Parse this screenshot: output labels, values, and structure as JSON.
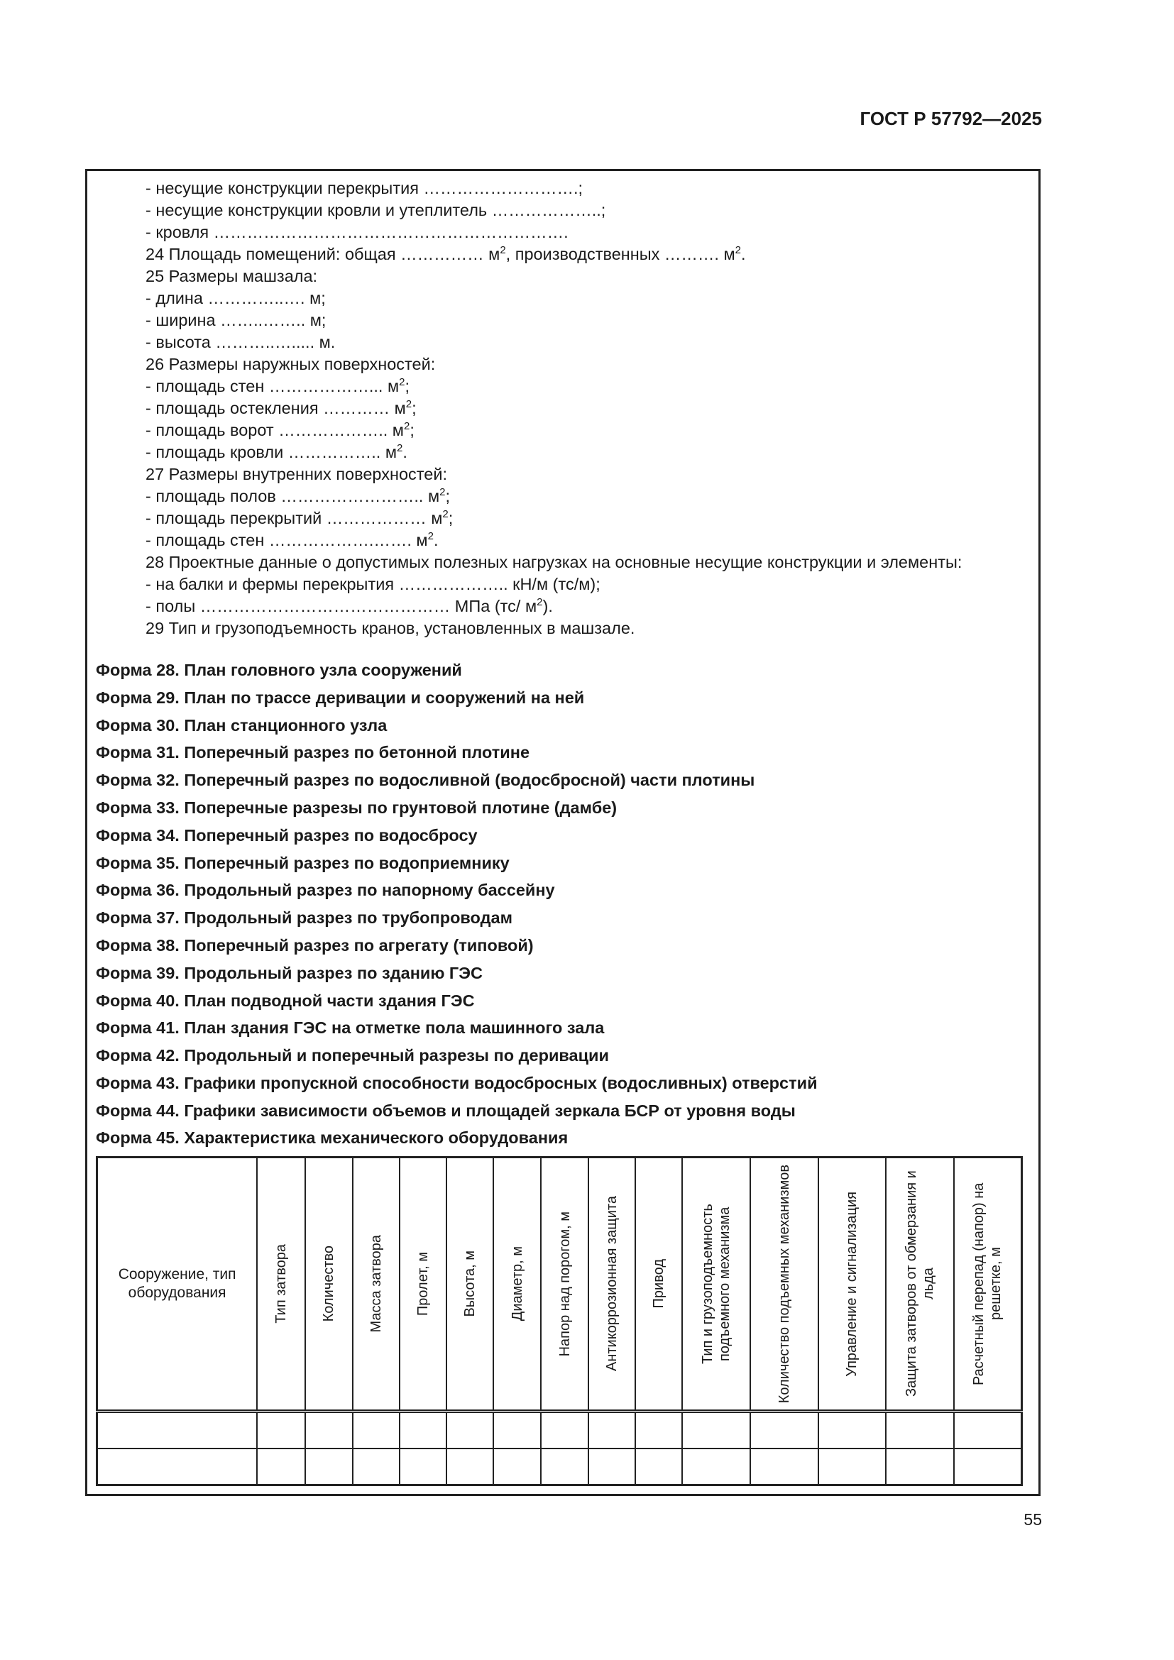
{
  "header": {
    "code": "ГОСТ Р 57792—2025"
  },
  "lines": [
    {
      "t": "- несущие конструкции перекрытия ……………………….;"
    },
    {
      "t": "- несущие конструкции кровли и утеплитель ………………..;"
    },
    {
      "t": "- кровля ………………………………………………………."
    },
    {
      "t": "24 Площадь помещений: общая …………… м",
      "s": "2",
      "e": ", производственных ………. м",
      "s2": "2",
      "e2": "."
    },
    {
      "t": "25 Размеры машзала:"
    },
    {
      "t": "- длина …………..…. м;"
    },
    {
      "t": "- ширина ……..…….. м;"
    },
    {
      "t": "- высота ………..…..... м."
    },
    {
      "t": "26 Размеры наружных поверхностей:"
    },
    {
      "t": "- площадь стен ………………... м",
      "s": "2",
      "e": ";"
    },
    {
      "t": "- площадь остекления ………… м",
      "s": "2",
      "e": ";"
    },
    {
      "t": "- площадь ворот ……………….. м",
      "s": "2",
      "e": ";"
    },
    {
      "t": "- площадь кровли …………….. м",
      "s": "2",
      "e": "."
    },
    {
      "t": "27 Размеры внутренних поверхностей:"
    },
    {
      "t": "- площадь полов …………………….. м",
      "s": "2",
      "e": ";"
    },
    {
      "t": "- площадь перекрытий ……………… м",
      "s": "2",
      "e": ";"
    },
    {
      "t": "- площадь стен ……………….……. м",
      "s": "2",
      "e": "."
    },
    {
      "t": "28 Проектные данные о допустимых полезных нагрузках на основные несущие конструкции и элементы:"
    },
    {
      "t": "- на балки и фермы перекрытия ……………….. кН/м (тс/м);"
    },
    {
      "t": "- полы ……………………………………… МПа (тс/ м",
      "s": "2",
      "e": ")."
    },
    {
      "t": "29 Тип и грузоподъемность кранов, установленных в машзале."
    }
  ],
  "forms": [
    "Форма 28. План головного узла сооружений",
    "Форма 29. План по трассе деривации и сооружений на ней",
    "Форма 30. План станционного узла",
    "Форма 31. Поперечный разрез по бетонной плотине",
    "Форма 32. Поперечный разрез по водосливной (водосбросной) части плотины",
    "Форма 33. Поперечные разрезы по грунтовой плотине (дамбе)",
    "Форма 34. Поперечный разрез по водосбросу",
    "Форма 35. Поперечный разрез по водоприемнику",
    "Форма 36. Продольный разрез по напорному бассейну",
    "Форма 37. Продольный разрез по трубопроводам",
    "Форма 38. Поперечный разрез по агрегату (типовой)",
    "Форма 39. Продольный разрез по зданию ГЭС",
    "Форма 40. План подводной части здания ГЭС",
    "Форма 41. План здания ГЭС на отметке пола машинного зала",
    "Форма 42. Продольный и поперечный разрезы по деривации",
    "Форма 43. Графики пропускной способности водосбросных (водосливных) отверстий",
    "Форма 44. Графики зависимости объемов и площадей зеркала БСР от уровня воды"
  ],
  "form45": {
    "title": "Форма 45. Характеристика механического оборудования",
    "first_col": "Сооружение, тип оборудования",
    "columns": [
      "Тип затвора",
      "Количество",
      "Масса затвора",
      "Пролет, м",
      "Высота, м",
      "Диаметр, м",
      "Напор над порогом, м",
      "Антикоррозионная защита",
      "Привод",
      "Тип и грузоподъемность подъемного механизма",
      "Количество подъемных механизмов",
      "Управление и сигнализация",
      "Защита затворов от обмерзания и льда",
      "Расчетный перепад (напор) на решетке, м"
    ]
  },
  "page_number": "55"
}
